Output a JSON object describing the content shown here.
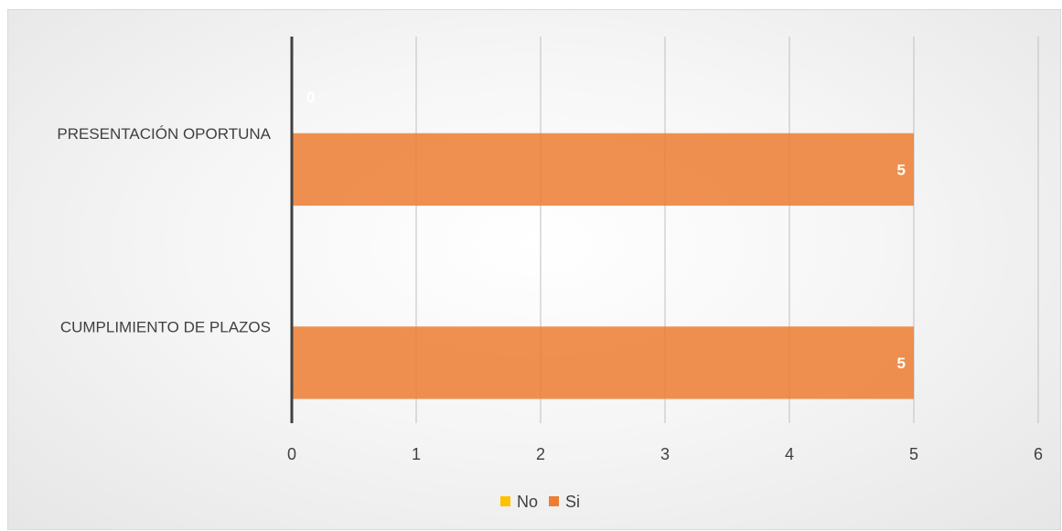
{
  "chart_data": {
    "type": "bar",
    "orientation": "horizontal",
    "categories": [
      "PRESENTACIÓN OPORTUNA",
      "CUMPLIMIENTO DE PLAZOS"
    ],
    "series": [
      {
        "name": "No",
        "values": [
          0,
          0
        ],
        "color": "#FFC000"
      },
      {
        "name": "Si",
        "values": [
          5,
          5
        ],
        "color": "#ED7D31"
      }
    ],
    "xlim": [
      0,
      6
    ],
    "xticks": [
      "0",
      "1",
      "2",
      "3",
      "4",
      "5",
      "6"
    ],
    "data_labels": [
      {
        "series": "No",
        "category": "PRESENTACIÓN OPORTUNA",
        "text": "0"
      },
      {
        "series": "Si",
        "category": "PRESENTACIÓN OPORTUNA",
        "text": "5"
      },
      {
        "series": "Si",
        "category": "CUMPLIMIENTO DE PLAZOS",
        "text": "5"
      }
    ],
    "legend_position": "bottom",
    "grid": "vertical",
    "title": "",
    "xlabel": "",
    "ylabel": ""
  }
}
